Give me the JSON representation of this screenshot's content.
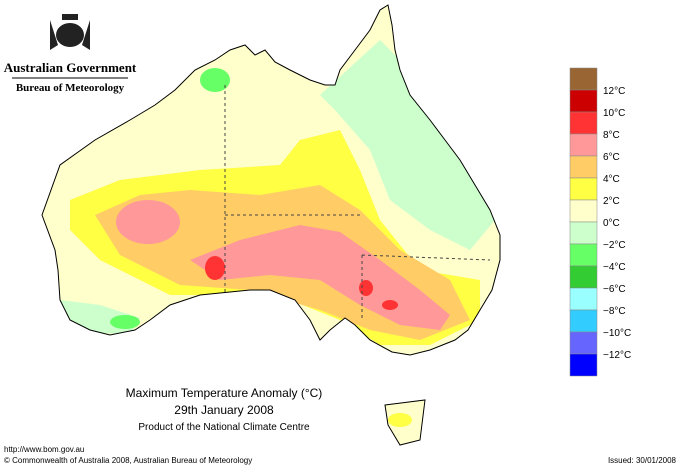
{
  "header": {
    "org": "Australian Government",
    "agency": "Bureau of Meteorology"
  },
  "title": {
    "line1": "Maximum Temperature Anomaly (°C)",
    "line2": "29th January 2008",
    "line3": "Product of the National Climate Centre"
  },
  "legend": {
    "colors": [
      "#996633",
      "#cc0000",
      "#ff3333",
      "#ff9999",
      "#ffcc66",
      "#ffff44",
      "#ffffcc",
      "#ccffcc",
      "#66ff66",
      "#33cc33",
      "#99ffff",
      "#33ccff",
      "#6666ff",
      "#0000ff"
    ],
    "labels": [
      "12°C",
      "10°C",
      "8°C",
      "6°C",
      "4°C",
      "2°C",
      "0°C",
      "−2°C",
      "−4°C",
      "−6°C",
      "−8°C",
      "−10°C",
      "−12°C"
    ]
  },
  "footer": {
    "url": "http://www.bom.gov.au",
    "copyright": "© Commonwealth of Australia 2008, Australian Bureau of Meteorology",
    "issued": "Issued: 30/01/2008"
  }
}
